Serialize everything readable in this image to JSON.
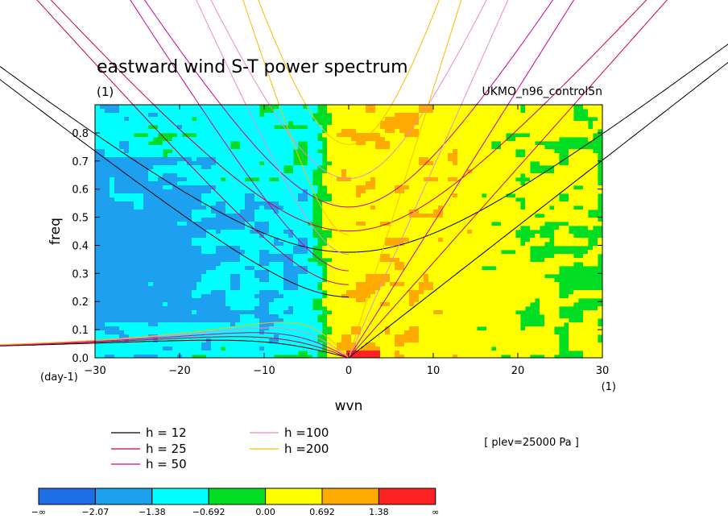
{
  "chart_data": {
    "type": "heatmap",
    "title": "eastward wind S-T power spectrum",
    "unit_label": "(1)",
    "dataset_label": "UKMO_n96_control5n",
    "annotation": "[ plev=25000 Pa ]",
    "xlabel": "wvn",
    "xunit": "(1)",
    "ylabel": "freq",
    "yunit": "(day-1)",
    "xlim": [
      -30,
      30
    ],
    "ylim": [
      0,
      0.9
    ],
    "xticks": [
      "-30",
      "-20",
      "-10",
      "0",
      "10",
      "20",
      "30"
    ],
    "yticks": [
      "0.0",
      "0.1",
      "0.2",
      "0.3",
      "0.4",
      "0.5",
      "0.6",
      "0.7",
      "0.8"
    ],
    "colorbar": {
      "labels": [
        "-∞",
        "-2.07",
        "-1.38",
        "-0.692",
        "0.00",
        "0.692",
        "1.38",
        "∞"
      ],
      "colors": [
        "#1e6ee6",
        "#1ea0f0",
        "#00ffff",
        "#00dd22",
        "#ffff00",
        "#ffaa00",
        "#ff2222"
      ]
    },
    "dispersion_curves": [
      {
        "label": "h = 12",
        "depth": 12,
        "color": "#000000"
      },
      {
        "label": "h = 25",
        "depth": 25,
        "color": "#cc0033"
      },
      {
        "label": "h = 50",
        "depth": 50,
        "color": "#cc0099"
      },
      {
        "label": "h =100",
        "depth": 100,
        "color": "#ee88cc"
      },
      {
        "label": "h =200",
        "depth": 200,
        "color": "#ffbb00"
      }
    ]
  }
}
